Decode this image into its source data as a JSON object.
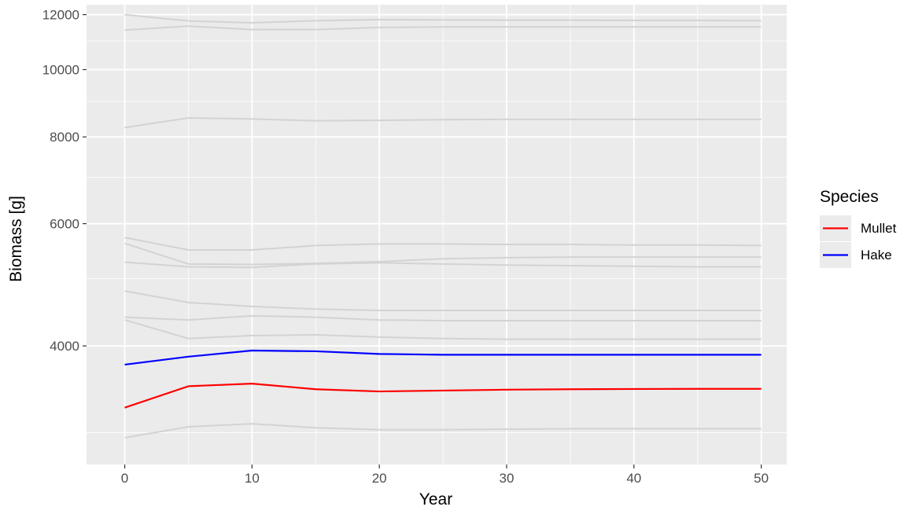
{
  "chart_data": {
    "type": "line",
    "title": "",
    "xlabel": "Year",
    "ylabel": "Biomass [g]",
    "x_scale": "linear",
    "y_scale": "log",
    "xlim": [
      -3,
      52
    ],
    "ylim": [
      2700,
      12400
    ],
    "x_ticks": [
      0,
      10,
      20,
      30,
      40,
      50
    ],
    "x_ticks_minor": [
      5,
      15,
      25,
      35,
      45
    ],
    "y_ticks": [
      4000,
      6000,
      8000,
      10000,
      12000
    ],
    "y_tick_labels": [
      "4000",
      "6000",
      "8000",
      "10000",
      "12000"
    ],
    "y_ticks_minor": [
      3000,
      5000,
      7000,
      9000,
      11000
    ],
    "grid": true,
    "legend": {
      "title": "Species",
      "position": "right",
      "entries": [
        {
          "name": "Mullet",
          "color": "#ff0000"
        },
        {
          "name": "Hake",
          "color": "#0000ff"
        }
      ]
    },
    "colors": {
      "background_series": "#d3d3d3",
      "panel": "#ebebeb",
      "grid": "#ffffff"
    },
    "x": [
      0,
      5,
      10,
      15,
      20,
      25,
      30,
      35,
      40,
      45,
      50
    ],
    "series": [
      {
        "name": "Mullet",
        "color": "#ff0000",
        "highlight": true,
        "values": [
          3260,
          3500,
          3530,
          3465,
          3440,
          3450,
          3460,
          3465,
          3468,
          3470,
          3470
        ]
      },
      {
        "name": "Hake",
        "color": "#0000ff",
        "highlight": true,
        "values": [
          3760,
          3860,
          3940,
          3930,
          3895,
          3885,
          3885,
          3885,
          3885,
          3885,
          3885
        ]
      },
      {
        "values": [
          12000,
          11750,
          11680,
          11760,
          11800,
          11790,
          11780,
          11780,
          11770,
          11770,
          11760
        ]
      },
      {
        "values": [
          11400,
          11550,
          11420,
          11420,
          11500,
          11520,
          11520,
          11520,
          11520,
          11520,
          11520
        ]
      },
      {
        "values": [
          8250,
          8520,
          8490,
          8440,
          8450,
          8470,
          8480,
          8480,
          8480,
          8480,
          8480
        ]
      },
      {
        "values": [
          5730,
          5500,
          5500,
          5580,
          5610,
          5610,
          5600,
          5600,
          5590,
          5590,
          5580
        ]
      },
      {
        "values": [
          5620,
          5250,
          5240,
          5260,
          5290,
          5340,
          5360,
          5370,
          5370,
          5370,
          5370
        ]
      },
      {
        "values": [
          5280,
          5200,
          5190,
          5250,
          5270,
          5250,
          5230,
          5220,
          5210,
          5200,
          5200
        ]
      },
      {
        "values": [
          4800,
          4620,
          4560,
          4520,
          4500,
          4500,
          4500,
          4500,
          4500,
          4500,
          4500
        ]
      },
      {
        "values": [
          4400,
          4360,
          4420,
          4400,
          4360,
          4350,
          4350,
          4350,
          4350,
          4350,
          4350
        ]
      },
      {
        "values": [
          4360,
          4100,
          4140,
          4150,
          4120,
          4100,
          4090,
          4090,
          4090,
          4090,
          4090
        ]
      },
      {
        "values": [
          2950,
          3060,
          3090,
          3050,
          3030,
          3030,
          3035,
          3040,
          3040,
          3040,
          3040
        ]
      }
    ]
  }
}
